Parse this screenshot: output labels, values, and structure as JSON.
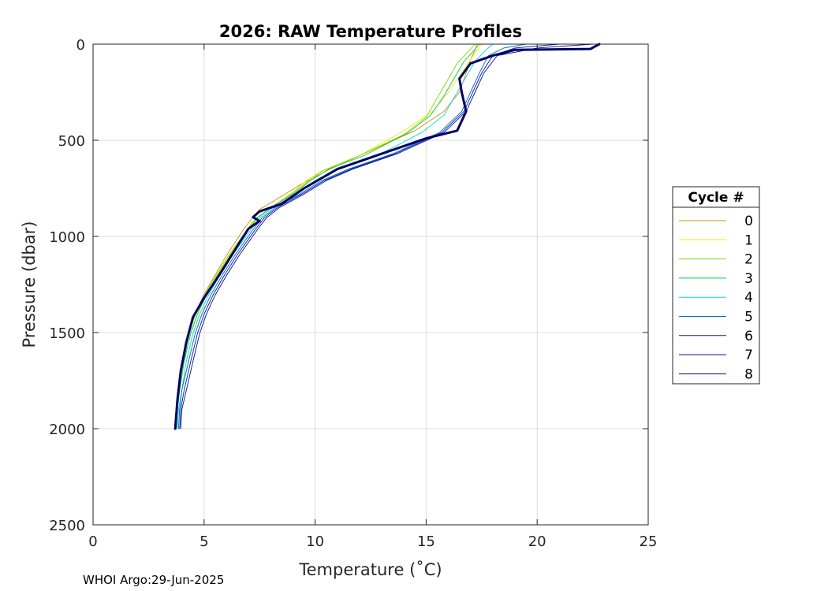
{
  "chart_data": {
    "type": "line",
    "title": "2026: RAW Temperature Profiles",
    "xlabel": "Temperature (˚C)",
    "ylabel": "Pressure (dbar)",
    "xlim": [
      0,
      25
    ],
    "ylim": [
      0,
      2500
    ],
    "y_reversed": true,
    "grid": true,
    "xticks": [
      "0",
      "5",
      "10",
      "15",
      "20",
      "25"
    ],
    "yticks": [
      "0",
      "500",
      "1000",
      "1500",
      "2000",
      "2500"
    ],
    "legend": {
      "title": "Cycle #",
      "placement": "outside-right"
    },
    "series": [
      {
        "name": "0",
        "color": "#d98c00",
        "x": [
          17.3,
          17.2,
          17.0,
          16.8,
          16.5,
          15.8,
          14.5,
          12.0,
          10.5,
          9.5,
          8.5,
          7.5,
          7.2,
          6.8,
          6.0,
          5.5,
          5.0,
          4.6,
          4.3,
          4.1,
          3.9,
          3.8,
          3.7
        ],
        "y": [
          0,
          30,
          80,
          150,
          250,
          350,
          450,
          580,
          660,
          720,
          790,
          860,
          900,
          960,
          1100,
          1200,
          1300,
          1400,
          1500,
          1650,
          1800,
          1900,
          2000
        ]
      },
      {
        "name": "1",
        "color": "#ffe600",
        "x": [
          17.5,
          17.3,
          17.0,
          16.6,
          16.0,
          15.3,
          14.0,
          12.0,
          10.5,
          9.7,
          9.0,
          8.0,
          7.4,
          7.0,
          6.2,
          5.6,
          5.1,
          4.7,
          4.4,
          4.1,
          3.9,
          3.8,
          3.75
        ],
        "y": [
          0,
          30,
          80,
          150,
          250,
          350,
          450,
          580,
          650,
          700,
          770,
          850,
          900,
          960,
          1090,
          1200,
          1300,
          1400,
          1500,
          1650,
          1800,
          1900,
          2000
        ]
      },
      {
        "name": "2",
        "color": "#7fdb00",
        "x": [
          17.2,
          16.8,
          16.4,
          16.0,
          15.5,
          15.0,
          14.0,
          12.0,
          10.3,
          9.5,
          8.8,
          7.9,
          7.3,
          6.9,
          6.1,
          5.5,
          5.0,
          4.6,
          4.3,
          4.1,
          3.9,
          3.8,
          3.75
        ],
        "y": [
          0,
          50,
          100,
          180,
          280,
          380,
          470,
          580,
          660,
          730,
          790,
          860,
          910,
          970,
          1100,
          1210,
          1310,
          1410,
          1510,
          1650,
          1800,
          1900,
          2000
        ]
      },
      {
        "name": "3",
        "color": "#00cc4d",
        "x": [
          17.4,
          17.1,
          16.7,
          16.3,
          15.8,
          15.2,
          14.2,
          12.2,
          10.6,
          9.8,
          9.0,
          8.0,
          7.4,
          7.0,
          6.2,
          5.6,
          5.1,
          4.7,
          4.4,
          4.1,
          3.9,
          3.8,
          3.75
        ],
        "y": [
          0,
          40,
          90,
          170,
          270,
          370,
          460,
          580,
          650,
          710,
          780,
          850,
          905,
          965,
          1095,
          1205,
          1305,
          1405,
          1505,
          1650,
          1800,
          1900,
          2000
        ]
      },
      {
        "name": "4",
        "color": "#00d9d9",
        "x": [
          18.0,
          17.6,
          17.2,
          16.8,
          16.3,
          15.8,
          14.8,
          12.8,
          11.0,
          10.0,
          9.1,
          8.1,
          7.5,
          7.1,
          6.3,
          5.7,
          5.2,
          4.8,
          4.5,
          4.2,
          4.0,
          3.85,
          3.8
        ],
        "y": [
          0,
          40,
          90,
          170,
          270,
          370,
          460,
          580,
          650,
          710,
          780,
          850,
          905,
          965,
          1095,
          1205,
          1305,
          1405,
          1505,
          1650,
          1800,
          1900,
          2000
        ]
      },
      {
        "name": "5",
        "color": "#0066cc",
        "x": [
          19.5,
          18.5,
          17.8,
          17.4,
          17.0,
          16.6,
          15.6,
          13.5,
          11.5,
          10.3,
          9.3,
          8.2,
          7.6,
          7.2,
          6.4,
          5.8,
          5.3,
          4.9,
          4.6,
          4.3,
          4.0,
          3.9,
          3.85
        ],
        "y": [
          0,
          20,
          60,
          150,
          250,
          350,
          460,
          570,
          650,
          710,
          780,
          850,
          905,
          965,
          1095,
          1205,
          1305,
          1405,
          1505,
          1650,
          1800,
          1900,
          2000
        ]
      },
      {
        "name": "6",
        "color": "#0019a6",
        "x": [
          21.0,
          19.0,
          18.0,
          17.5,
          17.1,
          16.7,
          15.7,
          13.6,
          11.6,
          10.4,
          9.4,
          8.3,
          7.7,
          7.3,
          6.5,
          5.9,
          5.4,
          5.0,
          4.7,
          4.4,
          4.1,
          3.95,
          3.9
        ],
        "y": [
          0,
          20,
          60,
          150,
          250,
          350,
          460,
          570,
          650,
          710,
          780,
          850,
          905,
          965,
          1095,
          1205,
          1305,
          1405,
          1505,
          1650,
          1800,
          1900,
          2000
        ]
      },
      {
        "name": "7",
        "color": "#000d99",
        "x": [
          22.5,
          20.0,
          18.2,
          17.6,
          17.2,
          16.8,
          15.8,
          13.7,
          11.7,
          10.5,
          9.5,
          8.4,
          7.8,
          7.4,
          6.6,
          6.0,
          5.5,
          5.1,
          4.8,
          4.5,
          4.2,
          4.0,
          3.95
        ],
        "y": [
          0,
          20,
          60,
          150,
          250,
          350,
          460,
          570,
          650,
          710,
          780,
          850,
          905,
          965,
          1095,
          1205,
          1305,
          1405,
          1505,
          1650,
          1800,
          1900,
          2000
        ]
      },
      {
        "name": "8",
        "color": "#000066",
        "x": [
          22.8,
          22.4,
          19.0,
          18.0,
          17.0,
          16.5,
          16.6,
          16.8,
          16.4,
          15.0,
          13.0,
          11.0,
          9.5,
          8.5,
          7.5,
          7.2,
          7.5,
          7.0,
          6.5,
          5.8,
          5.0,
          4.5,
          4.2,
          3.95,
          3.8,
          3.7
        ],
        "y": [
          0,
          25,
          30,
          60,
          100,
          180,
          250,
          350,
          450,
          490,
          570,
          650,
          750,
          830,
          870,
          900,
          920,
          960,
          1050,
          1180,
          1320,
          1420,
          1550,
          1700,
          1850,
          2000
        ]
      }
    ]
  },
  "footer": {
    "stamp": "WHOI Argo:29-Jun-2025"
  }
}
